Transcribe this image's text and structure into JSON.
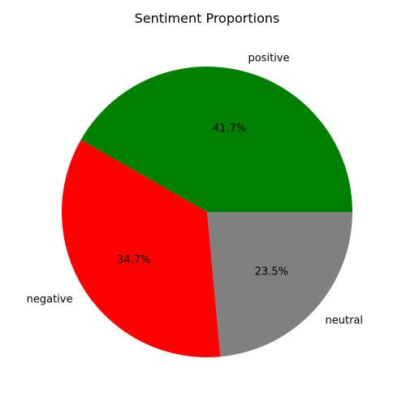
{
  "chart_data": {
    "type": "pie",
    "title": "Sentiment Proportions",
    "slices": [
      {
        "label": "positive",
        "value": 41.7,
        "pct_label": "41.7%",
        "color": "#008000"
      },
      {
        "label": "negative",
        "value": 34.7,
        "pct_label": "34.7%",
        "color": "#ff0000"
      },
      {
        "label": "neutral",
        "value": 23.5,
        "pct_label": "23.5%",
        "color": "#808080"
      }
    ],
    "start_angle": 0,
    "direction": "counterclockwise"
  }
}
